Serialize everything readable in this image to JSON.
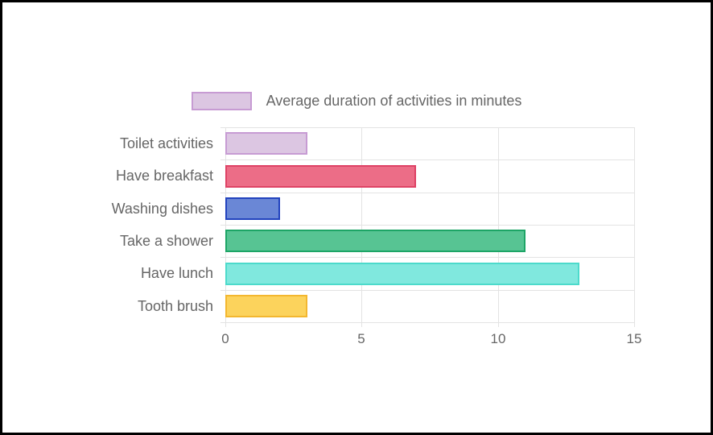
{
  "frame": {
    "background": "#ffffff",
    "border_color": "#000000"
  },
  "chart_data": {
    "type": "bar",
    "orientation": "horizontal",
    "title": "",
    "legend": "Average duration of activities in minutes",
    "legend_position": "top",
    "categories": [
      "Toilet activities",
      "Have breakfast",
      "Washing dishes",
      "Take a shower",
      "Have lunch",
      "Tooth brush"
    ],
    "values": [
      3,
      7,
      2,
      11,
      13,
      3
    ],
    "xlabel": "",
    "ylabel": "",
    "xlim": [
      0,
      15
    ],
    "xticks": [
      0,
      5,
      10,
      15
    ],
    "grid": true,
    "gridline_color": "#e3e3e3",
    "axis_text_color": "#666666",
    "legend_swatch": {
      "fill": "#dcc6e2",
      "border": "#c79bd3"
    },
    "bar_colors": [
      {
        "fill": "#dcc6e2",
        "border": "#c79bd3"
      },
      {
        "fill": "#ec6d87",
        "border": "#de4265"
      },
      {
        "fill": "#6a87d6",
        "border": "#2243be"
      },
      {
        "fill": "#57c493",
        "border": "#1da566"
      },
      {
        "fill": "#80e8de",
        "border": "#4cdacb"
      },
      {
        "fill": "#fcd35c",
        "border": "#f3b72f"
      }
    ]
  }
}
